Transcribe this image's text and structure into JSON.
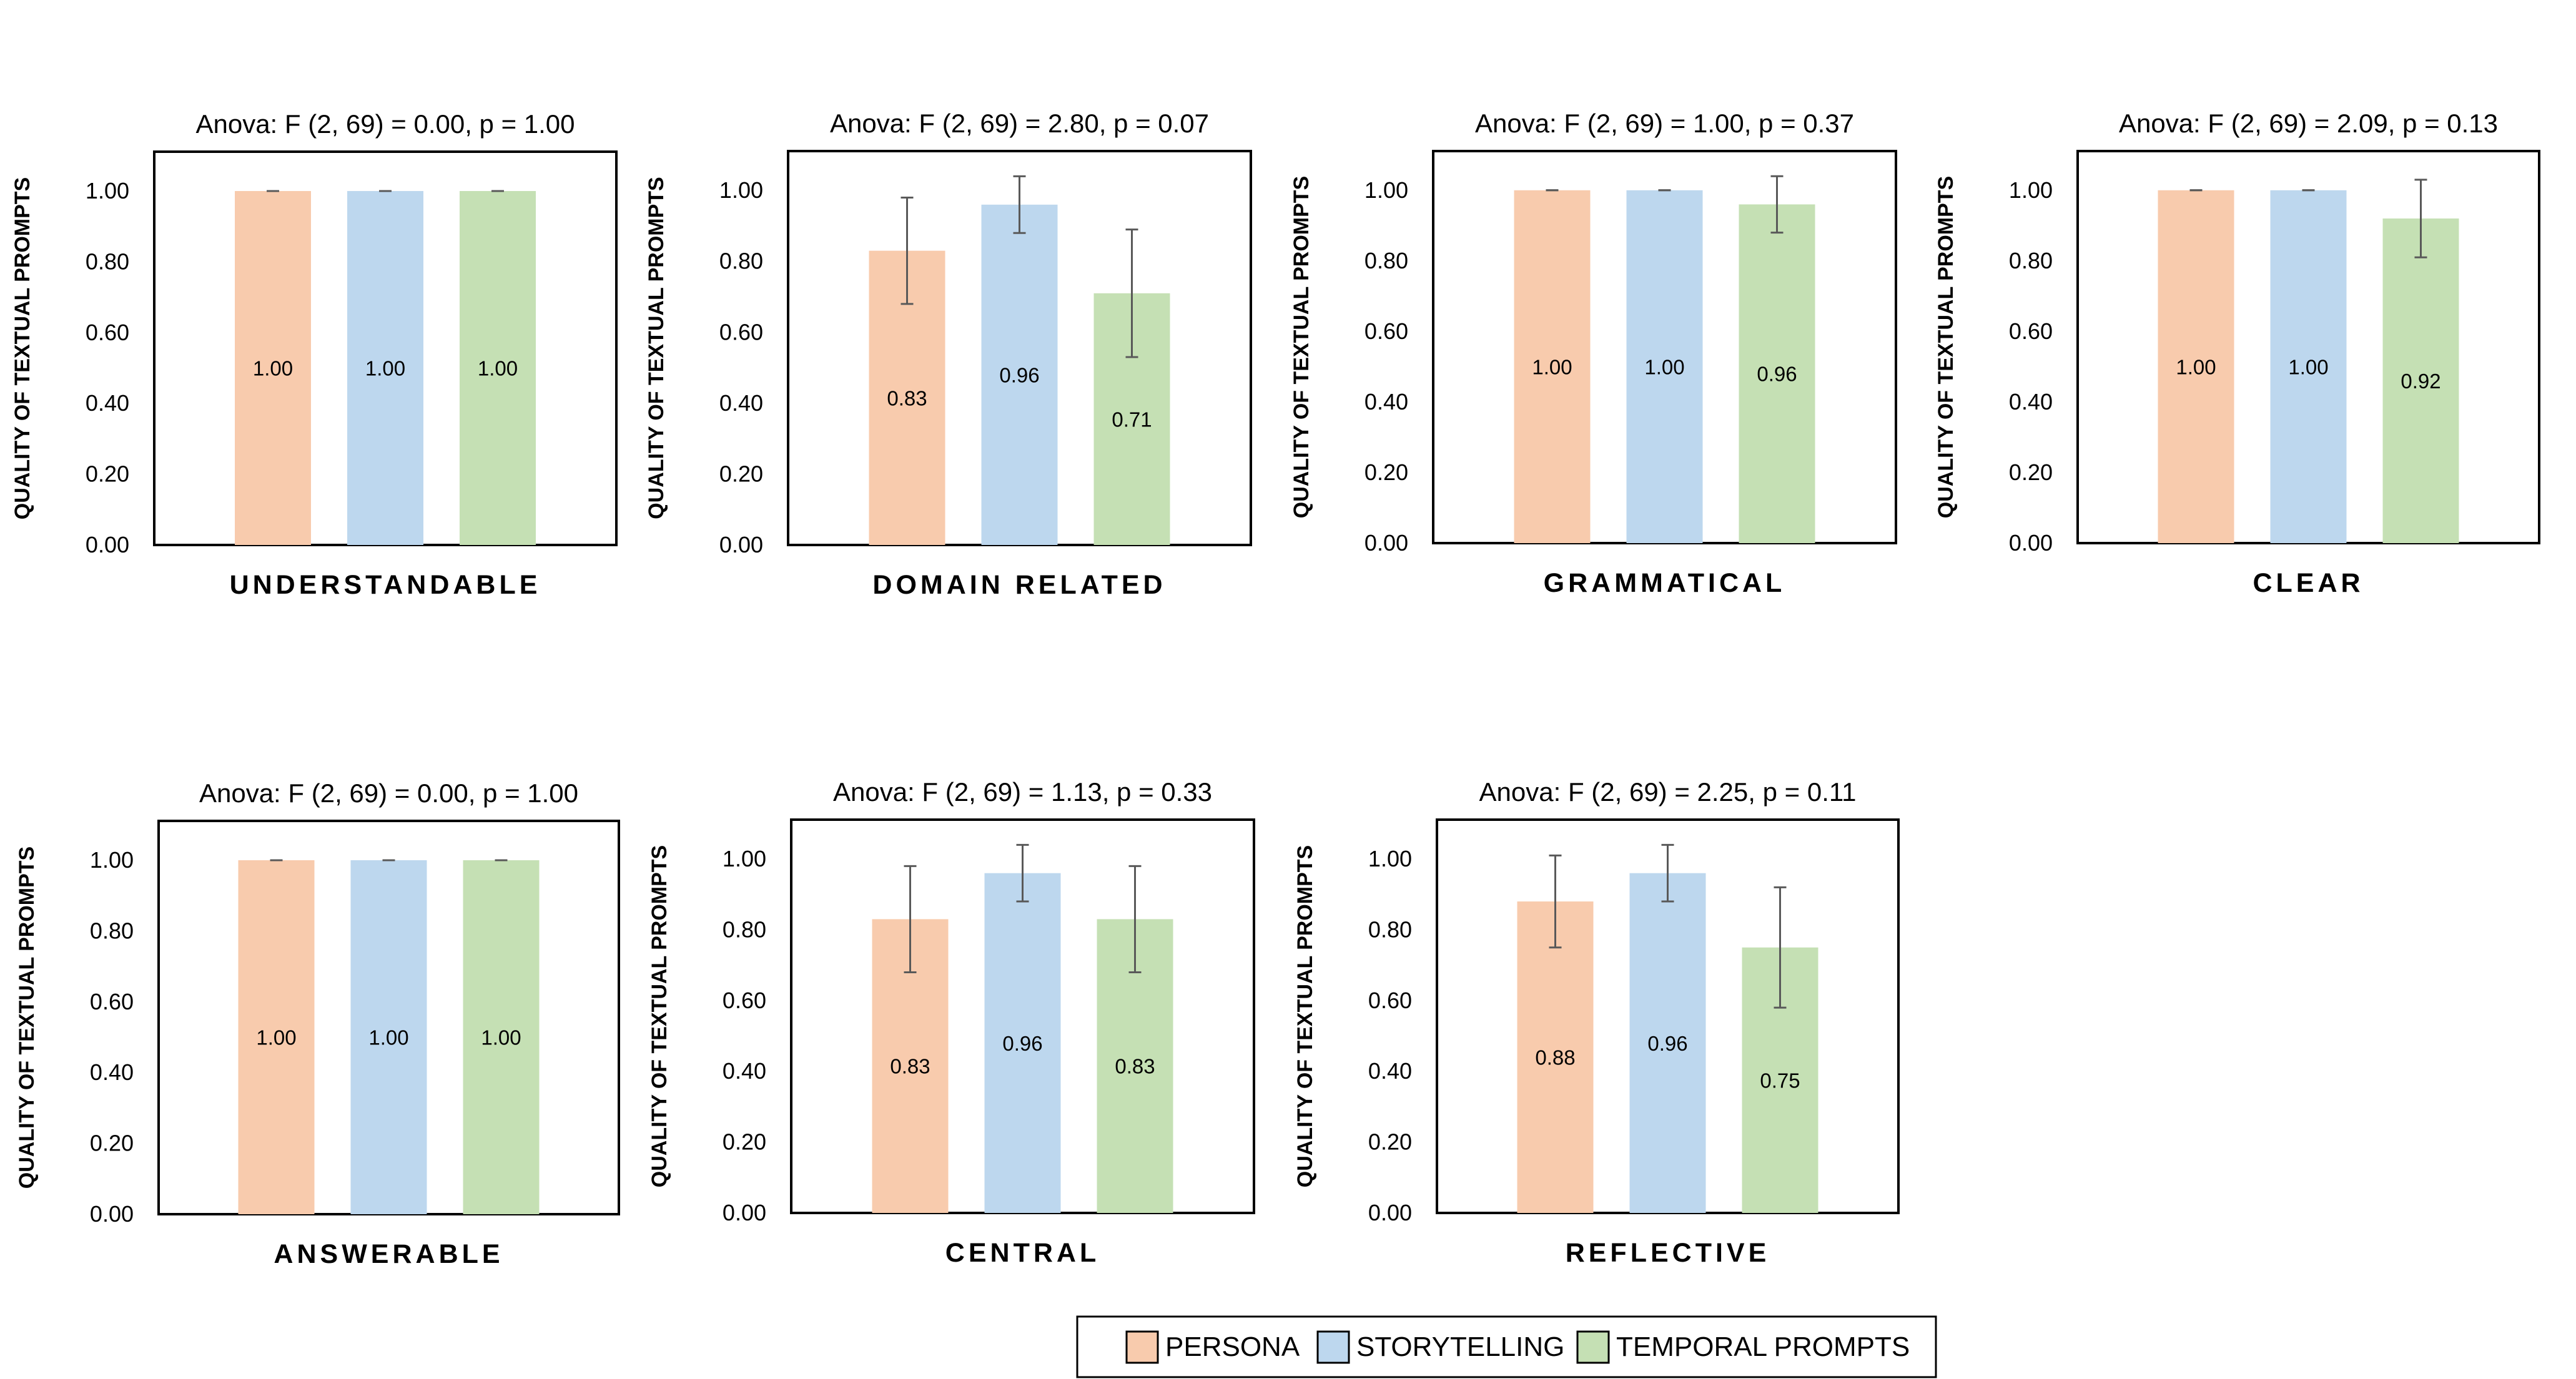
{
  "colors": {
    "PERSONA": "#f8cbad",
    "STORYTELLING": "#bdd7ee",
    "TEMPORAL PROMPTS": "#c5e0b4",
    "axis": "#000000",
    "error_bar": "#595959"
  },
  "legend": {
    "placement": "bottom-right",
    "items": [
      "PERSONA",
      "STORYTELLING",
      "TEMPORAL PROMPTS"
    ]
  },
  "chart_data": [
    {
      "type": "bar",
      "title": "Anova: F (2, 69) = 0.00, p = 1.00",
      "xlabel": "UNDERSTANDABLE",
      "ylabel": "QUALITY OF TEXTUAL PROMPTS",
      "ylim": [
        0,
        1.0
      ],
      "yticks": [
        "0.00",
        "0.20",
        "0.40",
        "0.60",
        "0.80",
        "1.00"
      ],
      "grid": false,
      "series": [
        {
          "name": "PERSONA",
          "value": 1.0,
          "error": 0.0,
          "label": "1.00"
        },
        {
          "name": "STORYTELLING",
          "value": 1.0,
          "error": 0.0,
          "label": "1.00"
        },
        {
          "name": "TEMPORAL PROMPTS",
          "value": 1.0,
          "error": 0.0,
          "label": "1.00"
        }
      ]
    },
    {
      "type": "bar",
      "title": "Anova: F (2, 69) = 2.80, p = 0.07",
      "xlabel": "DOMAIN RELATED",
      "ylabel": "QUALITY OF TEXTUAL PROMPTS",
      "ylim": [
        0,
        1.0
      ],
      "yticks": [
        "0.00",
        "0.20",
        "0.40",
        "0.60",
        "0.80",
        "1.00"
      ],
      "grid": false,
      "series": [
        {
          "name": "PERSONA",
          "value": 0.83,
          "error": 0.15,
          "label": "0.83"
        },
        {
          "name": "STORYTELLING",
          "value": 0.96,
          "error": 0.08,
          "label": "0.96"
        },
        {
          "name": "TEMPORAL PROMPTS",
          "value": 0.71,
          "error": 0.18,
          "label": "0.71"
        }
      ]
    },
    {
      "type": "bar",
      "title": "Anova: F (2, 69) = 1.00, p = 0.37",
      "xlabel": "GRAMMATICAL",
      "ylabel": "QUALITY OF TEXTUAL PROMPTS",
      "ylim": [
        0,
        1.0
      ],
      "yticks": [
        "0.00",
        "0.20",
        "0.40",
        "0.60",
        "0.80",
        "1.00"
      ],
      "grid": false,
      "series": [
        {
          "name": "PERSONA",
          "value": 1.0,
          "error": 0.0,
          "label": "1.00"
        },
        {
          "name": "STORYTELLING",
          "value": 1.0,
          "error": 0.0,
          "label": "1.00"
        },
        {
          "name": "TEMPORAL PROMPTS",
          "value": 0.96,
          "error": 0.08,
          "label": "0.96"
        }
      ]
    },
    {
      "type": "bar",
      "title": "Anova: F (2, 69) = 2.09, p = 0.13",
      "xlabel": "CLEAR",
      "ylabel": "QUALITY OF TEXTUAL PROMPTS",
      "ylim": [
        0,
        1.0
      ],
      "yticks": [
        "0.00",
        "0.20",
        "0.40",
        "0.60",
        "0.80",
        "1.00"
      ],
      "grid": false,
      "series": [
        {
          "name": "PERSONA",
          "value": 1.0,
          "error": 0.0,
          "label": "1.00"
        },
        {
          "name": "STORYTELLING",
          "value": 1.0,
          "error": 0.0,
          "label": "1.00"
        },
        {
          "name": "TEMPORAL PROMPTS",
          "value": 0.92,
          "error": 0.11,
          "label": "0.92"
        }
      ]
    },
    {
      "type": "bar",
      "title": "Anova: F (2, 69) = 0.00, p = 1.00",
      "xlabel": "ANSWERABLE",
      "ylabel": "QUALITY OF TEXTUAL PROMPTS",
      "ylim": [
        0,
        1.0
      ],
      "yticks": [
        "0.00",
        "0.20",
        "0.40",
        "0.60",
        "0.80",
        "1.00"
      ],
      "grid": false,
      "series": [
        {
          "name": "PERSONA",
          "value": 1.0,
          "error": 0.0,
          "label": "1.00"
        },
        {
          "name": "STORYTELLING",
          "value": 1.0,
          "error": 0.0,
          "label": "1.00"
        },
        {
          "name": "TEMPORAL PROMPTS",
          "value": 1.0,
          "error": 0.0,
          "label": "1.00"
        }
      ]
    },
    {
      "type": "bar",
      "title": "Anova: F (2, 69) = 1.13, p = 0.33",
      "xlabel": "CENTRAL",
      "ylabel": "QUALITY OF TEXTUAL PROMPTS",
      "ylim": [
        0,
        1.0
      ],
      "yticks": [
        "0.00",
        "0.20",
        "0.40",
        "0.60",
        "0.80",
        "1.00"
      ],
      "grid": false,
      "series": [
        {
          "name": "PERSONA",
          "value": 0.83,
          "error": 0.15,
          "label": "0.83"
        },
        {
          "name": "STORYTELLING",
          "value": 0.96,
          "error": 0.08,
          "label": "0.96"
        },
        {
          "name": "TEMPORAL PROMPTS",
          "value": 0.83,
          "error": 0.15,
          "label": "0.83"
        }
      ]
    },
    {
      "type": "bar",
      "title": "Anova: F (2, 69) = 2.25, p = 0.11",
      "xlabel": "REFLECTIVE",
      "ylabel": "QUALITY OF TEXTUAL PROMPTS",
      "ylim": [
        0,
        1.0
      ],
      "yticks": [
        "0.00",
        "0.20",
        "0.40",
        "0.60",
        "0.80",
        "1.00"
      ],
      "grid": false,
      "series": [
        {
          "name": "PERSONA",
          "value": 0.88,
          "error": 0.13,
          "label": "0.88"
        },
        {
          "name": "STORYTELLING",
          "value": 0.96,
          "error": 0.08,
          "label": "0.96"
        },
        {
          "name": "TEMPORAL PROMPTS",
          "value": 0.75,
          "error": 0.17,
          "label": "0.75"
        }
      ]
    }
  ]
}
